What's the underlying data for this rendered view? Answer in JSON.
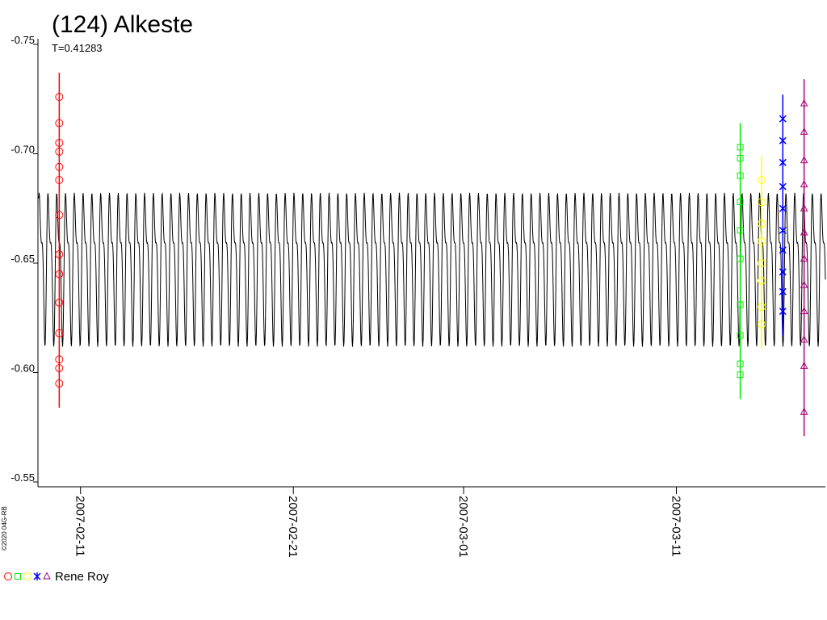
{
  "chart_data": {
    "type": "scatter",
    "title": "(124) Alkeste",
    "subtitle": "T=0.41283",
    "period": 0.41283,
    "credit": "©2020 04G-RB",
    "legend": "Rene Roy",
    "ylim": [
      -0.75,
      -0.55
    ],
    "yticks": [
      {
        "value": -0.75,
        "label": "-0.75"
      },
      {
        "value": -0.7,
        "label": "-0.70"
      },
      {
        "value": -0.65,
        "label": "-0.65"
      },
      {
        "value": -0.6,
        "label": "-0.60"
      },
      {
        "value": -0.55,
        "label": "-0.55"
      }
    ],
    "xlim": [
      "2007-02-09",
      "2007-03-18"
    ],
    "xticks": [
      "2007-02-11",
      "2007-02-21",
      "2007-03-01",
      "2007-03-11"
    ],
    "series": [
      {
        "color": "#ff0000",
        "marker": "circle",
        "x": [
          "2007-02-10",
          "2007-02-10",
          "2007-02-10",
          "2007-02-10",
          "2007-02-10",
          "2007-02-10",
          "2007-02-10",
          "2007-02-10",
          "2007-02-10",
          "2007-02-10",
          "2007-02-10",
          "2007-02-10",
          "2007-02-10",
          "2007-02-10"
        ],
        "values": [
          -0.726,
          -0.714,
          -0.705,
          -0.701,
          -0.694,
          -0.688,
          -0.672,
          -0.654,
          -0.645,
          -0.632,
          -0.618,
          -0.606,
          -0.602,
          -0.595
        ]
      },
      {
        "color": "#00ee00",
        "marker": "square",
        "x": [
          "2007-03-14",
          "2007-03-14",
          "2007-03-14",
          "2007-03-14",
          "2007-03-14",
          "2007-03-14",
          "2007-03-14",
          "2007-03-14",
          "2007-03-14",
          "2007-03-14"
        ],
        "values": [
          -0.703,
          -0.698,
          -0.69,
          -0.678,
          -0.665,
          -0.652,
          -0.631,
          -0.617,
          -0.604,
          -0.599
        ]
      },
      {
        "color": "#ffff00",
        "marker": "circle",
        "x": [
          "2007-03-15",
          "2007-03-15",
          "2007-03-15",
          "2007-03-15",
          "2007-03-15",
          "2007-03-15",
          "2007-03-15",
          "2007-03-15"
        ],
        "values": [
          -0.688,
          -0.678,
          -0.668,
          -0.66,
          -0.65,
          -0.642,
          -0.63,
          -0.622
        ]
      },
      {
        "color": "#0000ff",
        "marker": "star",
        "x": [
          "2007-03-16",
          "2007-03-16",
          "2007-03-16",
          "2007-03-16",
          "2007-03-16",
          "2007-03-16",
          "2007-03-16",
          "2007-03-16",
          "2007-03-16",
          "2007-03-16"
        ],
        "values": [
          -0.716,
          -0.706,
          -0.696,
          -0.685,
          -0.675,
          -0.665,
          -0.656,
          -0.646,
          -0.637,
          -0.628
        ]
      },
      {
        "color": "#aa0077",
        "marker": "triangle",
        "x": [
          "2007-03-17",
          "2007-03-17",
          "2007-03-17",
          "2007-03-17",
          "2007-03-17",
          "2007-03-17",
          "2007-03-17",
          "2007-03-17",
          "2007-03-17",
          "2007-03-17",
          "2007-03-17",
          "2007-03-17"
        ],
        "values": [
          -0.723,
          -0.71,
          -0.697,
          -0.686,
          -0.675,
          -0.664,
          -0.652,
          -0.64,
          -0.628,
          -0.615,
          -0.603,
          -0.582
        ]
      }
    ]
  }
}
